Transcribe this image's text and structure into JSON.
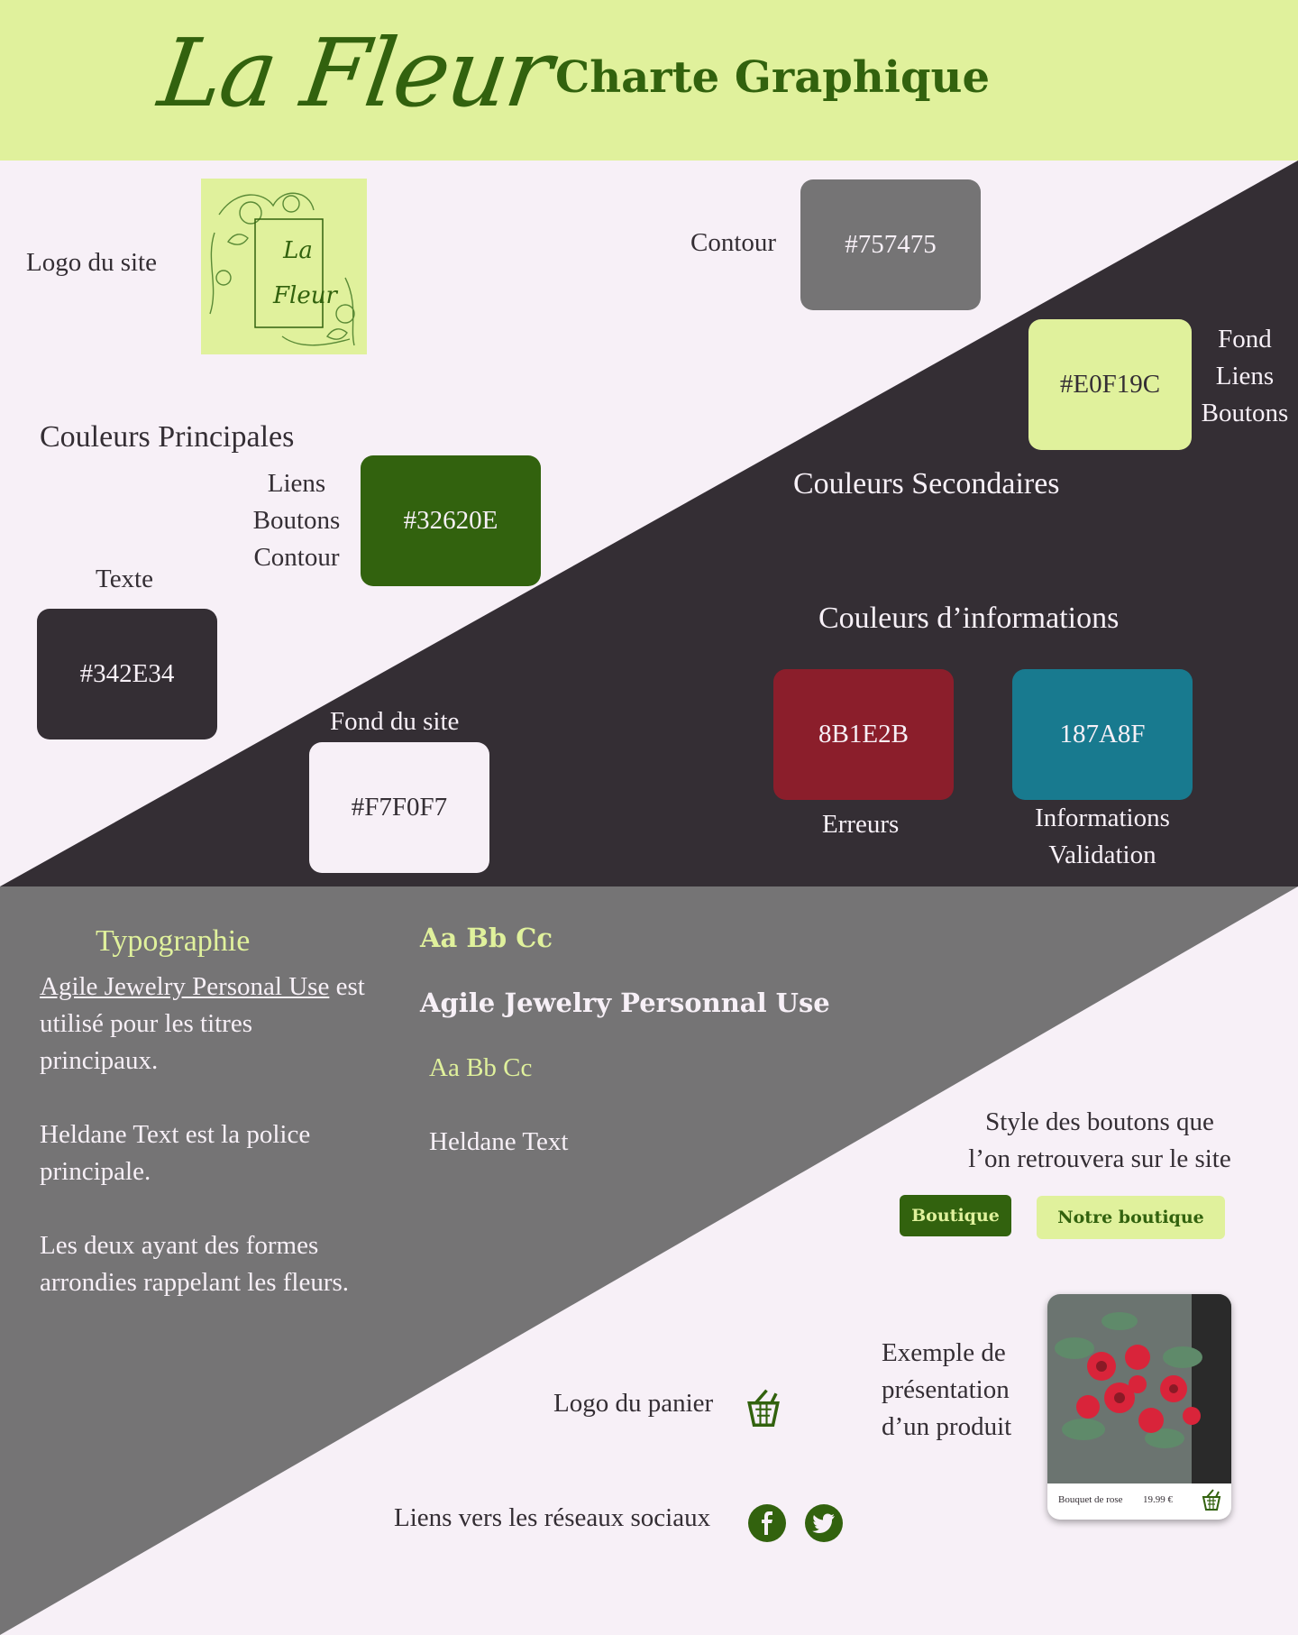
{
  "colors": {
    "text": "#342E34",
    "background": "#F7F0F7",
    "primary": "#32620E",
    "secondary": "#E0F19C",
    "outline": "#757475",
    "error": "#8B1E2B",
    "info": "#187A8F"
  },
  "header": {
    "brand": "La Fleur",
    "title": "Charte Graphique"
  },
  "logo": {
    "label": "Logo du site",
    "mark_text": "La Fleur"
  },
  "outline": {
    "label": "Contour",
    "code": "#757475"
  },
  "secondary_swatch": {
    "code": "#E0F19C",
    "uses": [
      "Fond",
      "Liens",
      "Boutons"
    ]
  },
  "principal": {
    "heading": "Couleurs Principales",
    "green_uses": [
      "Liens",
      "Boutons",
      "Contour"
    ],
    "green_code": "#32620E",
    "text_label": "Texte",
    "text_code": "#342E34",
    "bg_label": "Fond du site",
    "bg_code": "#F7F0F7"
  },
  "secondary": {
    "heading": "Couleurs Secondaires"
  },
  "information": {
    "heading": "Couleurs d’informations",
    "error_code": "8B1E2B",
    "error_label": "Erreurs",
    "info_code": "187A8F",
    "info_labels": [
      "Informations",
      "Validation"
    ]
  },
  "typography": {
    "heading": "Typographie",
    "font_link": "Agile Jewelry Personal Use",
    "line1_rest": " est",
    "line2": "utilisé pour les titres",
    "line3": "principaux.",
    "para2_line1": "Heldane Text est la police",
    "para2_line2": "principale.",
    "para3_line1": "Les deux ayant des formes",
    "para3_line2": "arrondies rappelant les fleurs.",
    "sample_title": "Aa Bb Cc",
    "sample_title_name": "Agile Jewelry Personnal Use",
    "sample_body": "Aa Bb Cc",
    "sample_body_name": "Heldane Text"
  },
  "buttons": {
    "intro_line1": "Style des boutons que",
    "intro_line2": "l’on retrouvera sur le site",
    "dark_label": "Boutique",
    "light_label": "Notre boutique"
  },
  "product": {
    "intro": [
      "Exemple de",
      "présentation",
      "d’un produit"
    ],
    "name": "Bouquet de rose",
    "price": "19.99 €"
  },
  "cart": {
    "label": "Logo du panier",
    "icon": "basket-icon"
  },
  "social": {
    "label": "Liens vers les réseaux sociaux",
    "icons": [
      "facebook-icon",
      "twitter-icon"
    ]
  }
}
